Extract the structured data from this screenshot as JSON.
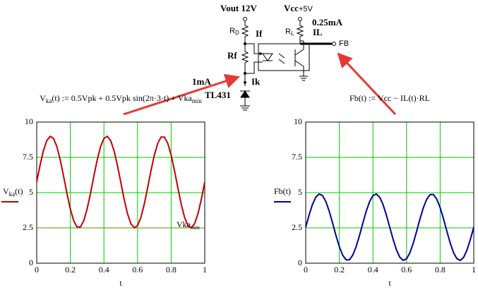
{
  "chart_data": [
    {
      "type": "line",
      "title": [
        "V",
        "ka",
        "(t) := 0.5Vpk + 0.5Vpk sin(2π·3·t) + Vka",
        "min"
      ],
      "ylabel": [
        "V",
        "ka",
        "(t)"
      ],
      "xlabel": "t",
      "x": [
        0,
        0.02,
        0.04,
        0.06,
        0.08,
        0.1,
        0.12,
        0.14,
        0.16,
        0.18,
        0.2,
        0.22,
        0.24,
        0.26,
        0.28,
        0.3,
        0.32,
        0.34,
        0.36,
        0.38,
        0.4,
        0.42,
        0.44,
        0.46,
        0.48,
        0.5,
        0.52,
        0.54,
        0.56,
        0.58,
        0.6,
        0.62,
        0.64,
        0.66,
        0.68,
        0.7,
        0.72,
        0.74,
        0.76,
        0.78,
        0.8,
        0.82,
        0.84,
        0.86,
        0.88,
        0.9,
        0.92,
        0.94,
        0.96,
        0.98,
        1
      ],
      "series": [
        {
          "name": "Vka(t)",
          "color": "#c00000",
          "values": [
            5.75,
            6.95,
            7.98,
            8.69,
            8.99,
            8.84,
            8.26,
            7.32,
            6.16,
            4.94,
            3.84,
            3.01,
            2.56,
            2.56,
            3.01,
            3.84,
            4.94,
            6.16,
            7.32,
            8.26,
            8.84,
            8.99,
            8.69,
            7.98,
            6.95,
            5.75,
            4.55,
            3.52,
            2.81,
            2.51,
            2.66,
            3.24,
            4.18,
            5.34,
            6.56,
            7.66,
            8.49,
            8.94,
            8.94,
            8.49,
            7.66,
            6.56,
            5.34,
            4.18,
            3.24,
            2.66,
            2.51,
            2.81,
            3.52,
            4.55,
            5.75
          ]
        }
      ],
      "reference_line": {
        "value": 2.5,
        "label": [
          "Vka",
          "min"
        ],
        "color": "#8b6b00"
      },
      "xlim": [
        0,
        1
      ],
      "xticks": [
        0,
        0.2,
        0.4,
        0.6,
        0.8,
        1
      ],
      "ylim": [
        0,
        10
      ],
      "yticks": [
        0,
        2.5,
        5,
        7.5,
        10
      ],
      "grid": true,
      "grid_color": "#00cc00"
    },
    {
      "type": "line",
      "title": [
        "Fb(t) := Vcc − IL(t)·RL"
      ],
      "ylabel": [
        "Fb(t)"
      ],
      "xlabel": "t",
      "x": [
        0,
        0.02,
        0.04,
        0.06,
        0.08,
        0.1,
        0.12,
        0.14,
        0.16,
        0.18,
        0.2,
        0.22,
        0.24,
        0.26,
        0.28,
        0.3,
        0.32,
        0.34,
        0.36,
        0.38,
        0.4,
        0.42,
        0.44,
        0.46,
        0.48,
        0.5,
        0.52,
        0.54,
        0.56,
        0.58,
        0.6,
        0.62,
        0.64,
        0.66,
        0.68,
        0.7,
        0.72,
        0.74,
        0.76,
        0.78,
        0.8,
        0.82,
        0.84,
        0.86,
        0.88,
        0.9,
        0.92,
        0.94,
        0.96,
        0.98,
        1
      ],
      "series": [
        {
          "name": "Fb(t)",
          "color": "#000099",
          "values": [
            2.55,
            3.41,
            4.16,
            4.68,
            4.9,
            4.79,
            4.36,
            3.68,
            2.84,
            1.96,
            1.17,
            0.57,
            0.24,
            0.24,
            0.57,
            1.17,
            1.96,
            2.84,
            3.68,
            4.36,
            4.79,
            4.9,
            4.68,
            4.16,
            3.41,
            2.55,
            1.69,
            0.94,
            0.42,
            0.2,
            0.31,
            0.74,
            1.42,
            2.26,
            3.14,
            3.93,
            4.53,
            4.86,
            4.86,
            4.53,
            3.93,
            3.14,
            2.26,
            1.42,
            0.74,
            0.31,
            0.2,
            0.42,
            0.94,
            1.69,
            2.55
          ]
        }
      ],
      "xlim": [
        0,
        1
      ],
      "xticks": [
        0,
        0.2,
        0.4,
        0.6,
        0.8,
        1
      ],
      "ylim": [
        0,
        10
      ],
      "yticks": [
        0,
        2.5,
        5,
        7.5,
        10
      ],
      "grid": true,
      "grid_color": "#00cc00"
    }
  ],
  "schematic": {
    "vout": "Vout 12V",
    "vcc": "Vcc",
    "vcc_value": "+5V",
    "rd": "R",
    "rd_sub": "D",
    "if": "If",
    "rf": "Rf",
    "rl": "R",
    "rl_sub": "L",
    "il_value": "0.25mA",
    "il": "IL",
    "fb": "FB",
    "ik_value": "1mA",
    "ik": "Ik",
    "tl431": "TL431"
  }
}
